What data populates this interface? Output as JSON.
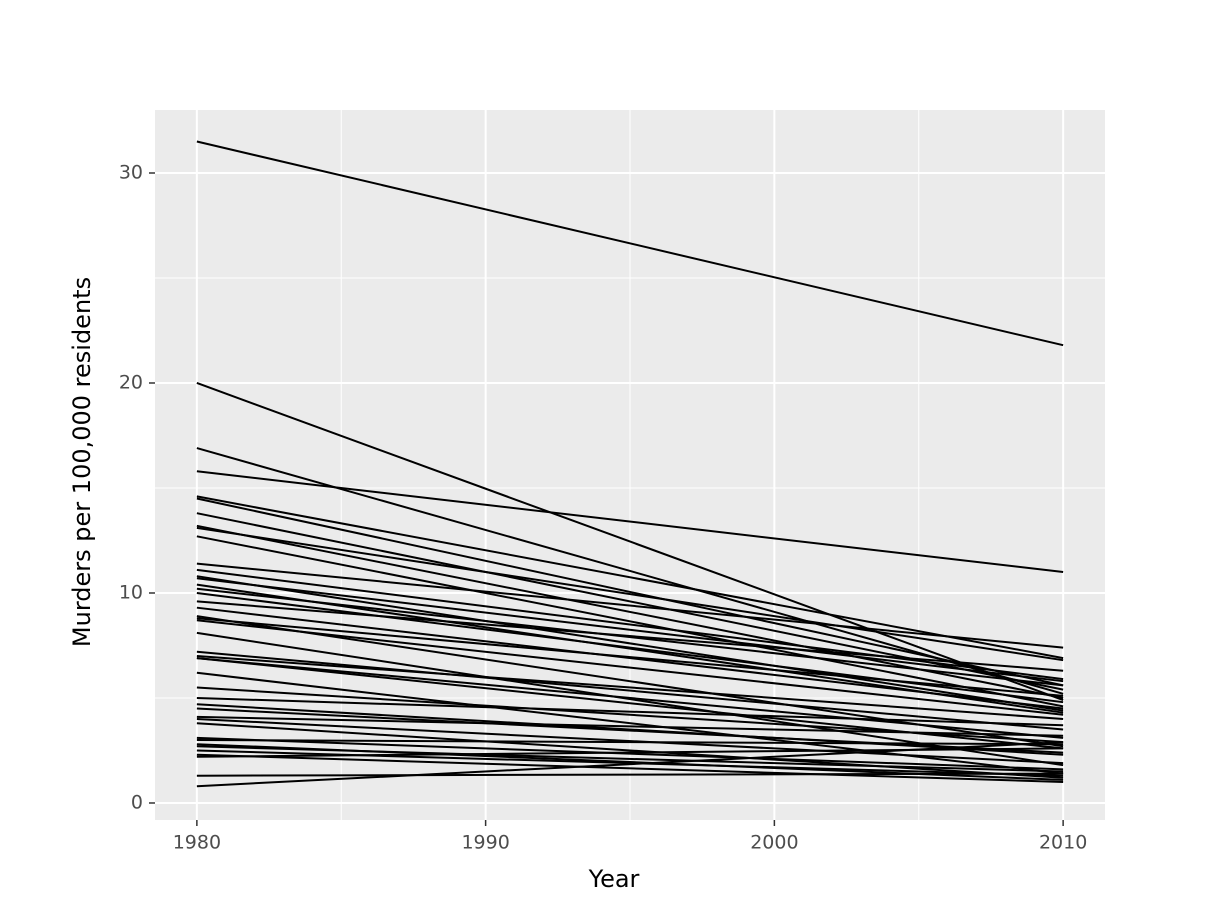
{
  "chart_data": {
    "type": "line",
    "xlabel": "Year",
    "ylabel": "Murders per 100,000 residents",
    "x": [
      1980,
      2010
    ],
    "color": "#000000",
    "grid": true,
    "xlim": [
      1978.55,
      2011.45
    ],
    "ylim": [
      -0.81,
      33.0
    ],
    "xticks": [
      1980,
      1990,
      2000,
      2010
    ],
    "yticks": [
      0,
      10,
      20,
      30
    ],
    "x_minor_ticks": [
      1985,
      1995,
      2005
    ],
    "y_minor_ticks": [
      5,
      15,
      25
    ],
    "series": [
      {
        "values": [
          31.5,
          21.8
        ]
      },
      {
        "values": [
          20.0,
          4.9
        ]
      },
      {
        "values": [
          16.9,
          5.2
        ]
      },
      {
        "values": [
          15.8,
          11.0
        ]
      },
      {
        "values": [
          14.6,
          6.9
        ]
      },
      {
        "values": [
          14.5,
          5.6
        ]
      },
      {
        "values": [
          13.8,
          5.4
        ]
      },
      {
        "values": [
          13.2,
          5.0
        ]
      },
      {
        "values": [
          13.1,
          6.8
        ]
      },
      {
        "values": [
          12.7,
          4.6
        ]
      },
      {
        "values": [
          11.4,
          7.4
        ]
      },
      {
        "values": [
          11.1,
          5.9
        ]
      },
      {
        "values": [
          10.8,
          4.4
        ]
      },
      {
        "values": [
          10.7,
          5.8
        ]
      },
      {
        "values": [
          10.4,
          4.3
        ]
      },
      {
        "values": [
          10.2,
          5.6
        ]
      },
      {
        "values": [
          10.0,
          4.8
        ]
      },
      {
        "values": [
          9.6,
          6.3
        ]
      },
      {
        "values": [
          9.3,
          4.5
        ]
      },
      {
        "values": [
          8.9,
          2.7
        ]
      },
      {
        "values": [
          8.8,
          5.1
        ]
      },
      {
        "values": [
          8.7,
          4.2
        ]
      },
      {
        "values": [
          8.1,
          1.8
        ]
      },
      {
        "values": [
          7.2,
          3.5
        ]
      },
      {
        "values": [
          7.0,
          4.0
        ]
      },
      {
        "values": [
          6.9,
          2.6
        ]
      },
      {
        "values": [
          6.9,
          3.1
        ]
      },
      {
        "values": [
          6.2,
          1.4
        ]
      },
      {
        "values": [
          5.5,
          2.9
        ]
      },
      {
        "values": [
          5.0,
          3.7
        ]
      },
      {
        "values": [
          4.7,
          2.3
        ]
      },
      {
        "values": [
          4.5,
          2.4
        ]
      },
      {
        "values": [
          4.1,
          3.2
        ]
      },
      {
        "values": [
          4.0,
          1.9
        ]
      },
      {
        "values": [
          3.8,
          1.2
        ]
      },
      {
        "values": [
          3.1,
          1.6
        ]
      },
      {
        "values": [
          3.0,
          2.8
        ]
      },
      {
        "values": [
          2.8,
          1.1
        ]
      },
      {
        "values": [
          2.7,
          1.5
        ]
      },
      {
        "values": [
          2.5,
          1.3
        ]
      },
      {
        "values": [
          2.3,
          1.0
        ]
      },
      {
        "values": [
          2.2,
          2.6
        ]
      },
      {
        "values": [
          1.3,
          1.4
        ]
      },
      {
        "values": [
          0.8,
          2.9
        ]
      }
    ]
  }
}
